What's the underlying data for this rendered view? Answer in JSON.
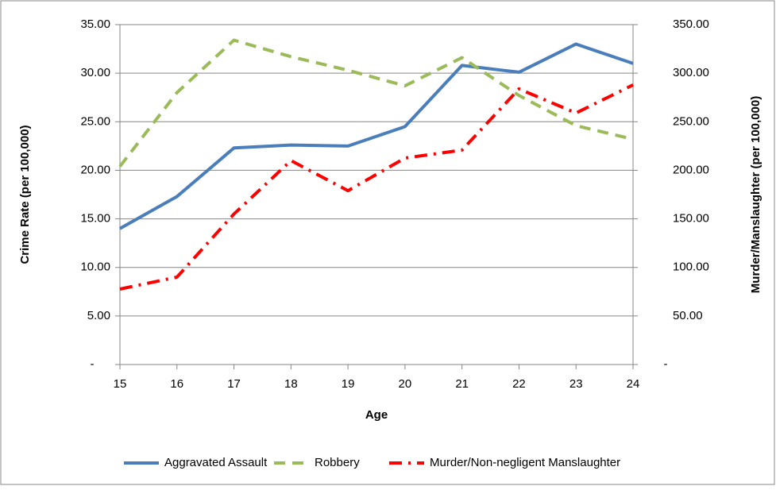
{
  "chart_data": {
    "type": "line",
    "x_label": "Age",
    "y_label": "Crime Rate (per 100,000)",
    "y2_label": "Murder/Manslaughter (per 100,000)",
    "x": [
      15,
      16,
      17,
      18,
      19,
      20,
      21,
      22,
      23,
      24
    ],
    "xlim": [
      15,
      24
    ],
    "xticks": [
      15,
      16,
      17,
      18,
      19,
      20,
      21,
      22,
      23,
      24
    ],
    "ylim": [
      0,
      35
    ],
    "yticks": [
      {
        "value": 0,
        "label": "-"
      },
      {
        "value": 5,
        "label": "5.00"
      },
      {
        "value": 10,
        "label": "10.00"
      },
      {
        "value": 15,
        "label": "15.00"
      },
      {
        "value": 20,
        "label": "20.00"
      },
      {
        "value": 25,
        "label": "25.00"
      },
      {
        "value": 30,
        "label": "30.00"
      },
      {
        "value": 35,
        "label": "35.00"
      }
    ],
    "y2lim": [
      0,
      350
    ],
    "y2ticks": [
      {
        "value": 0,
        "label": "-"
      },
      {
        "value": 50,
        "label": "50.00"
      },
      {
        "value": 100,
        "label": "100.00"
      },
      {
        "value": 150,
        "label": "150.00"
      },
      {
        "value": 200,
        "label": "200.00"
      },
      {
        "value": 250,
        "label": "250.00"
      },
      {
        "value": 300,
        "label": "300.00"
      },
      {
        "value": 350,
        "label": "350.00"
      }
    ],
    "grid": true,
    "legend": "bottom",
    "series": [
      {
        "name": "Aggravated Assault",
        "color": "#4a7ebb",
        "style": "solid",
        "values": [
          14.0,
          17.3,
          22.3,
          22.6,
          22.5,
          24.5,
          30.8,
          30.1,
          33.0,
          31.0
        ]
      },
      {
        "name": "Robbery",
        "color": "#9bbb59",
        "style": "dashed",
        "values": [
          20.4,
          28.0,
          33.4,
          31.7,
          30.3,
          28.7,
          31.6,
          27.7,
          24.6,
          23.2
        ]
      },
      {
        "name": "Murder/Non-negligent Manslaughter",
        "color": "#ff0000",
        "style": "dash-dot",
        "axis": "y2",
        "values": [
          77.7,
          90.0,
          155.0,
          210.0,
          179.0,
          212.6,
          220.8,
          283.8,
          259.0,
          287.9
        ]
      }
    ]
  }
}
